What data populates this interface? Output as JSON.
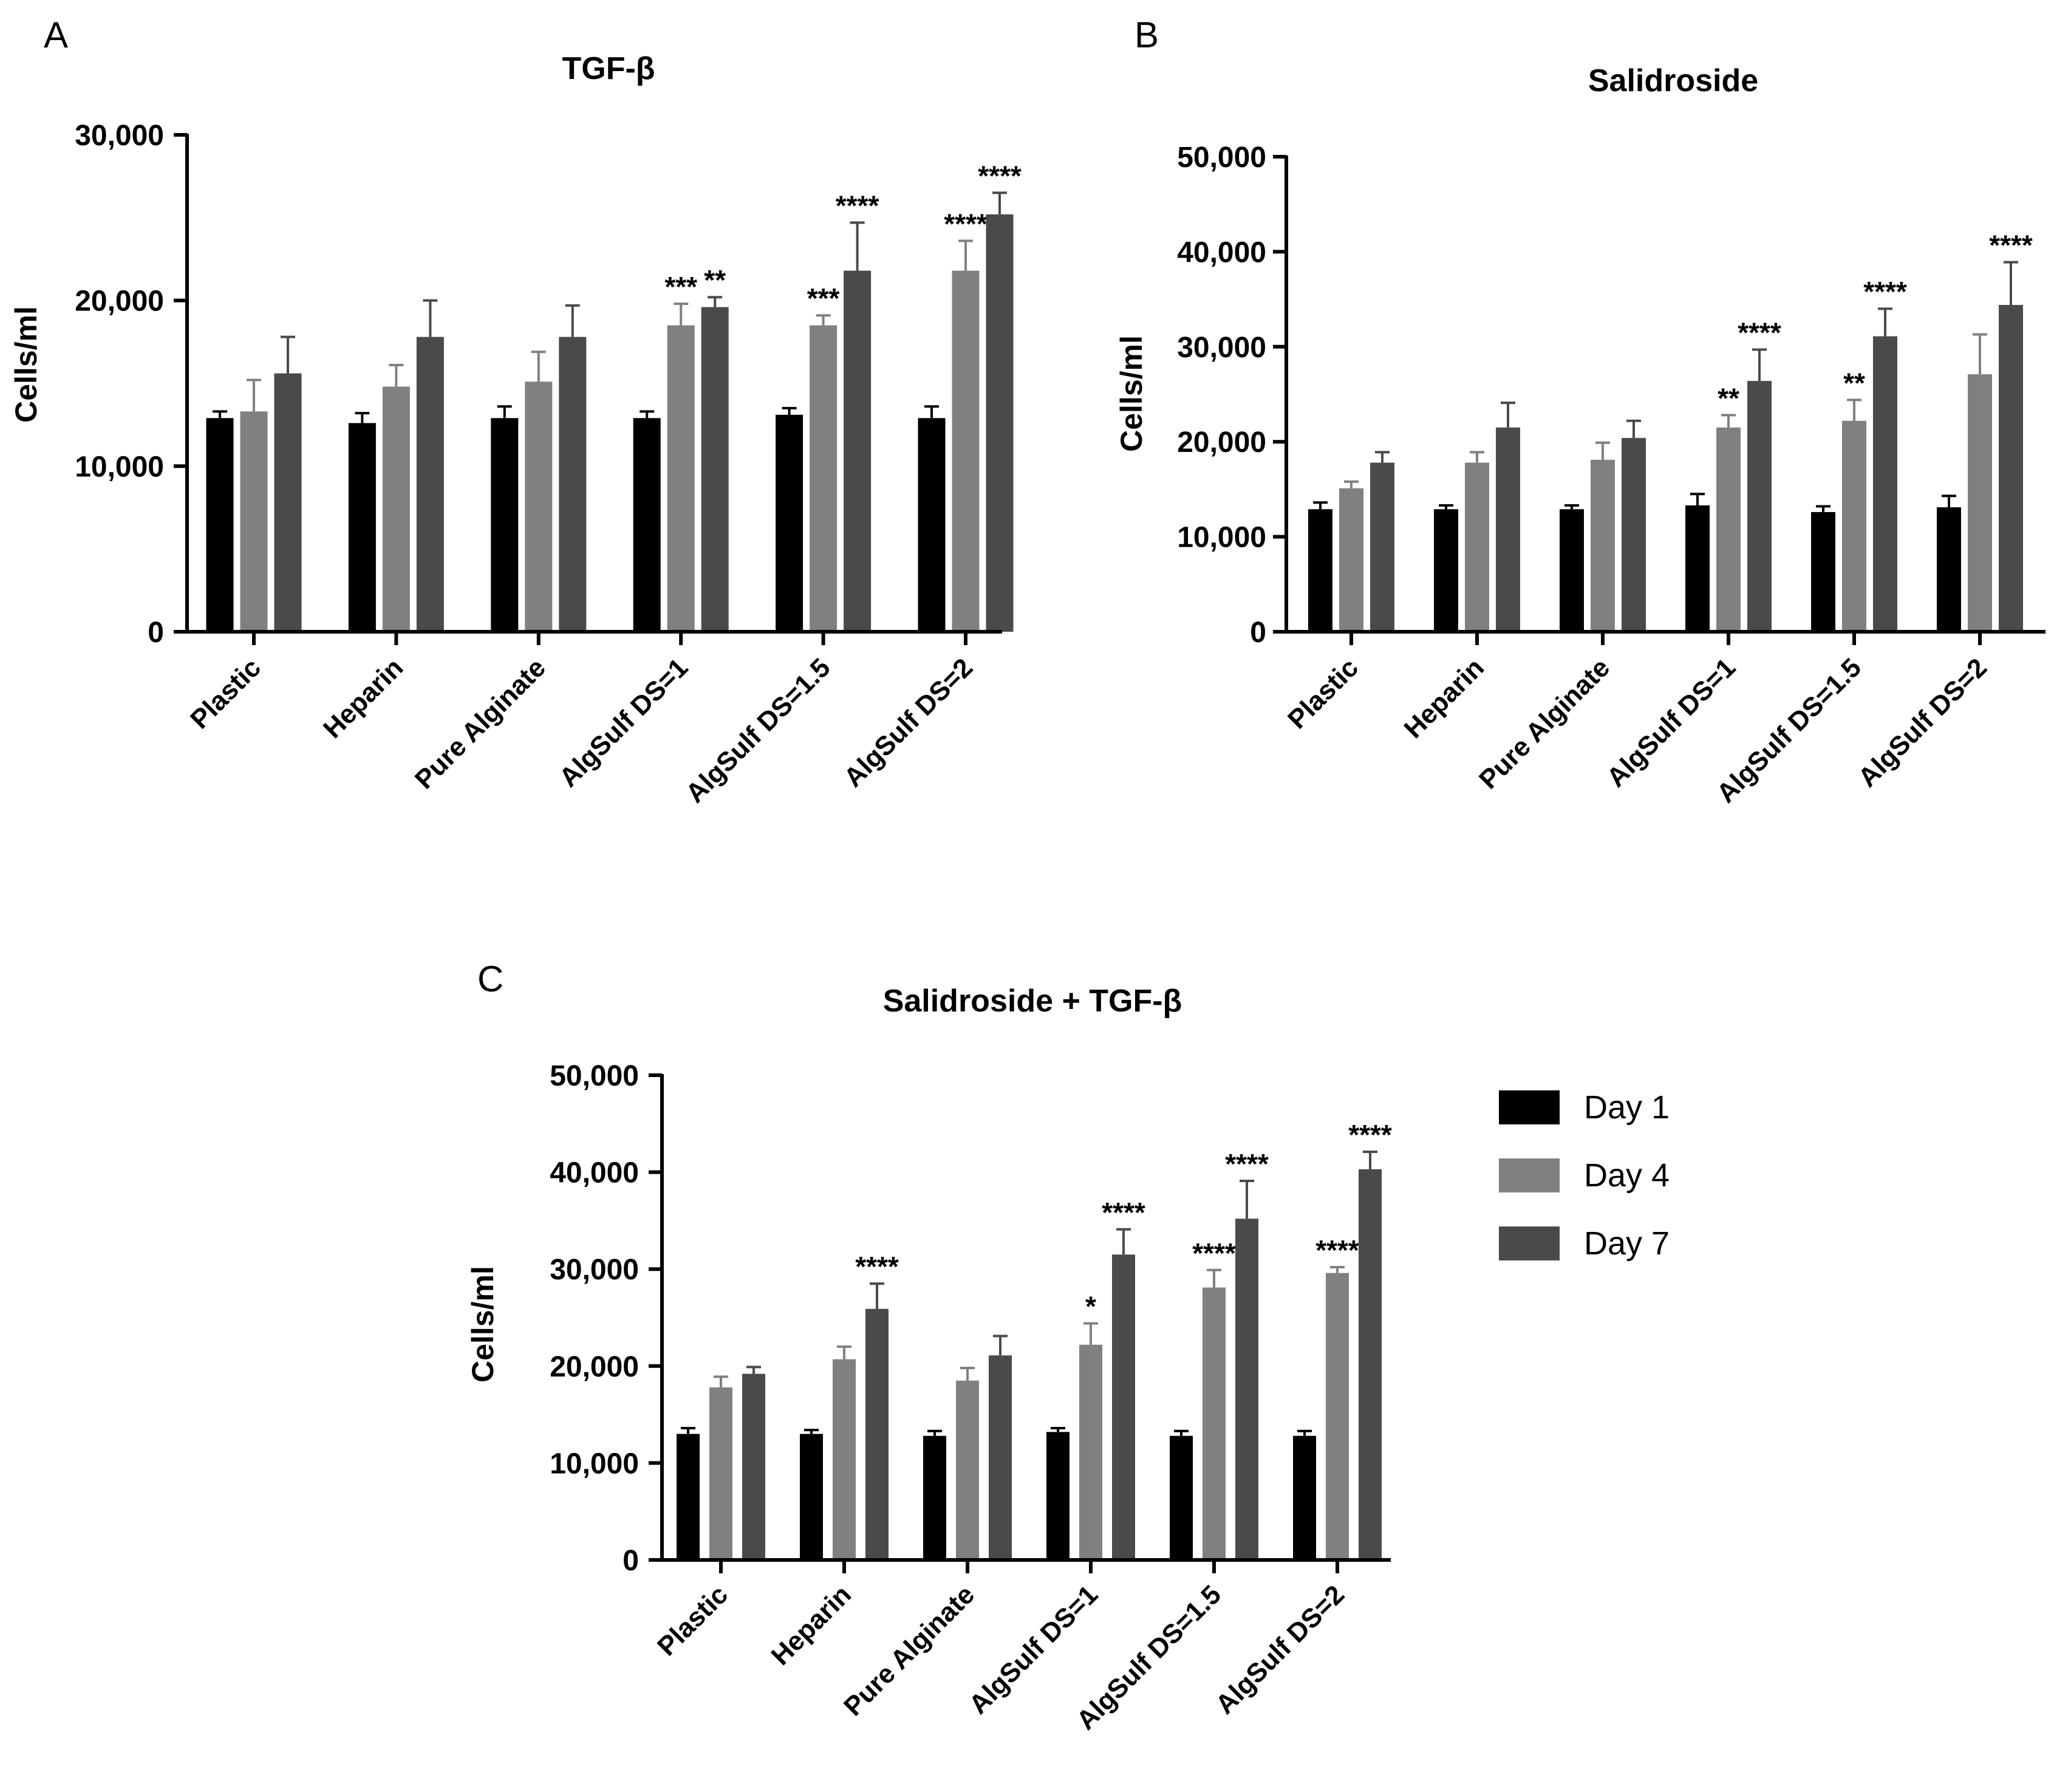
{
  "chart_data": [
    {
      "type": "bar",
      "panel": "A",
      "title": "TGF-β",
      "xlabel": "",
      "ylabel": "Cells/ml",
      "ylim": [
        0,
        30000
      ],
      "yticks": [
        0,
        10000,
        20000,
        30000
      ],
      "ytick_labels": [
        "0",
        "10,000",
        "20,000",
        "30,000"
      ],
      "categories": [
        "Plastic",
        "Heparin",
        "Pure Alginate",
        "AlgSulf  DS=1",
        "AlgSulf  DS=1.5",
        "AlgSulf  DS=2"
      ],
      "series": [
        {
          "name": "Day 1",
          "color": "#000000",
          "values": [
            12900,
            12600,
            12900,
            12900,
            13100,
            12900
          ],
          "errors": [
            400,
            600,
            700,
            400,
            400,
            700
          ],
          "sig": [
            "",
            "",
            "",
            "",
            "",
            ""
          ]
        },
        {
          "name": "Day 4",
          "color": "#808080",
          "values": [
            13300,
            14800,
            15100,
            18500,
            18500,
            21800
          ],
          "errors": [
            1900,
            1300,
            1800,
            1300,
            600,
            1800
          ],
          "sig": [
            "",
            "",
            "",
            "***",
            "***",
            "****"
          ]
        },
        {
          "name": "Day 7",
          "color": "#4a4a4a",
          "values": [
            15600,
            17800,
            17800,
            19600,
            21800,
            25200
          ],
          "errors": [
            2200,
            2200,
            1900,
            600,
            2900,
            1300
          ],
          "sig": [
            "",
            "",
            "",
            "**",
            "****",
            "****"
          ]
        }
      ]
    },
    {
      "type": "bar",
      "panel": "B",
      "title": "Salidroside",
      "xlabel": "",
      "ylabel": "Cells/ml",
      "ylim": [
        0,
        50000
      ],
      "yticks": [
        0,
        10000,
        20000,
        30000,
        40000,
        50000
      ],
      "ytick_labels": [
        "0",
        "10,000",
        "20,000",
        "30,000",
        "40,000",
        "50,000"
      ],
      "categories": [
        "Plastic",
        "Heparin",
        "Pure Alginate",
        "AlgSulf  DS=1",
        "AlgSulf  DS=1.5",
        "AlgSulf  DS=2"
      ],
      "series": [
        {
          "name": "Day 1",
          "color": "#000000",
          "values": [
            12900,
            12900,
            12900,
            13300,
            12600,
            13100
          ],
          "errors": [
            700,
            400,
            400,
            1200,
            600,
            1200
          ],
          "sig": [
            "",
            "",
            "",
            "",
            "",
            ""
          ]
        },
        {
          "name": "Day 4",
          "color": "#808080",
          "values": [
            15100,
            17800,
            18100,
            21500,
            22200,
            27100
          ],
          "errors": [
            700,
            1100,
            1800,
            1300,
            2200,
            4200
          ],
          "sig": [
            "",
            "",
            "",
            "**",
            "**",
            ""
          ]
        },
        {
          "name": "Day 7",
          "color": "#4a4a4a",
          "values": [
            17800,
            21500,
            20400,
            26400,
            31100,
            34400
          ],
          "errors": [
            1100,
            2600,
            1800,
            3300,
            2900,
            4500
          ],
          "sig": [
            "",
            "",
            "",
            "****",
            "****",
            "****"
          ]
        }
      ]
    },
    {
      "type": "bar",
      "panel": "C",
      "title": "Salidroside + TGF-β",
      "xlabel": "",
      "ylabel": "Cells/ml",
      "ylim": [
        0,
        50000
      ],
      "yticks": [
        0,
        10000,
        20000,
        30000,
        40000,
        50000
      ],
      "ytick_labels": [
        "0",
        "10,000",
        "20,000",
        "30,000",
        "40,000",
        "50,000"
      ],
      "categories": [
        "Plastic",
        "Heparin",
        "Pure Alginate",
        "AlgSulf  DS=1",
        "AlgSulf  DS=1.5",
        "AlgSulf  DS=2"
      ],
      "series": [
        {
          "name": "Day 1",
          "color": "#000000",
          "values": [
            13000,
            13000,
            12800,
            13200,
            12800,
            12800
          ],
          "errors": [
            600,
            400,
            500,
            400,
            500,
            500
          ],
          "sig": [
            "",
            "",
            "",
            "",
            "",
            ""
          ]
        },
        {
          "name": "Day 4",
          "color": "#808080",
          "values": [
            17800,
            20700,
            18500,
            22200,
            28100,
            29600
          ],
          "errors": [
            1100,
            1300,
            1300,
            2200,
            1800,
            600
          ],
          "sig": [
            "",
            "",
            "",
            "*",
            "****",
            "****"
          ]
        },
        {
          "name": "Day 7",
          "color": "#4a4a4a",
          "values": [
            19200,
            25900,
            21100,
            31500,
            35200,
            40300
          ],
          "errors": [
            700,
            2600,
            2000,
            2600,
            3900,
            1800
          ],
          "sig": [
            "",
            "****",
            "",
            "****",
            "****",
            "****"
          ]
        }
      ],
      "legend": {
        "placement": "right",
        "entries": [
          "Day 1",
          "Day 4",
          "Day 7"
        ]
      }
    }
  ]
}
